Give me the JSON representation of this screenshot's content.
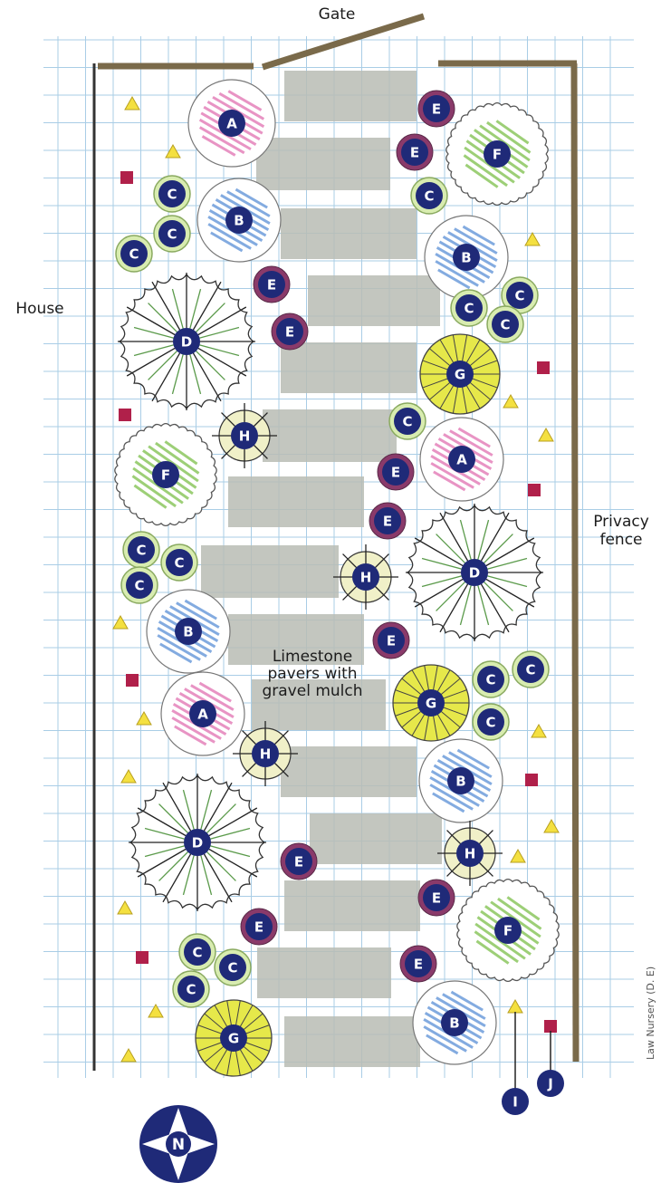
{
  "labels": {
    "gate": "Gate",
    "house": "House",
    "privacy_fence": [
      "Privacy",
      "fence"
    ],
    "pavers": [
      "Limestone",
      "pavers with",
      "gravel mulch"
    ],
    "compass": "N",
    "credit": "Law Nursery (D. E)"
  },
  "legend_markers": [
    "I",
    "J"
  ],
  "colors": {
    "grid": "#a9cde6",
    "fence": "#7a6a4a",
    "house_wall": "#333333",
    "paver": "#b8bcb4",
    "marker_fill": "#1f2a78",
    "marker_text": "#ffffff",
    "A": "#e070b0",
    "B": "#5a8fd6",
    "C": "#d8ecb0",
    "D": "#5a9a4a",
    "E": "#8a3a6a",
    "F": "#7cbf4a",
    "G": "#e6e84a",
    "H": "#f0f0c8",
    "triangle": "#f4e040",
    "square": "#b0204a"
  },
  "plants": [
    {
      "code": "A",
      "kind": "pink-scribble"
    },
    {
      "code": "E",
      "kind": "ring"
    },
    {
      "code": "F",
      "kind": "green-scalloped"
    },
    {
      "code": "E",
      "kind": "ring"
    },
    {
      "code": "C",
      "kind": "small-ring"
    },
    {
      "code": "B",
      "kind": "blue-scribble"
    },
    {
      "code": "C",
      "kind": "small-ring"
    },
    {
      "code": "C",
      "kind": "small-ring"
    },
    {
      "code": "C",
      "kind": "small-ring"
    },
    {
      "code": "B",
      "kind": "blue-scribble"
    },
    {
      "code": "E",
      "kind": "ring"
    },
    {
      "code": "C",
      "kind": "small-ring"
    },
    {
      "code": "C",
      "kind": "small-ring"
    },
    {
      "code": "C",
      "kind": "small-ring"
    },
    {
      "code": "D",
      "kind": "spiky"
    },
    {
      "code": "E",
      "kind": "ring"
    },
    {
      "code": "G",
      "kind": "yellow-rayed"
    },
    {
      "code": "C",
      "kind": "small-ring"
    },
    {
      "code": "H",
      "kind": "starburst"
    },
    {
      "code": "A",
      "kind": "pink-scribble"
    },
    {
      "code": "E",
      "kind": "ring"
    },
    {
      "code": "F",
      "kind": "green-scalloped"
    },
    {
      "code": "E",
      "kind": "ring"
    },
    {
      "code": "C",
      "kind": "small-ring"
    },
    {
      "code": "C",
      "kind": "small-ring"
    },
    {
      "code": "C",
      "kind": "small-ring"
    },
    {
      "code": "H",
      "kind": "starburst"
    },
    {
      "code": "D",
      "kind": "spiky"
    },
    {
      "code": "B",
      "kind": "blue-scribble"
    },
    {
      "code": "E",
      "kind": "ring"
    },
    {
      "code": "C",
      "kind": "small-ring"
    },
    {
      "code": "C",
      "kind": "small-ring"
    },
    {
      "code": "C",
      "kind": "small-ring"
    },
    {
      "code": "A",
      "kind": "pink-scribble"
    },
    {
      "code": "G",
      "kind": "yellow-rayed"
    },
    {
      "code": "H",
      "kind": "starburst"
    },
    {
      "code": "B",
      "kind": "blue-scribble"
    },
    {
      "code": "D",
      "kind": "spiky"
    },
    {
      "code": "H",
      "kind": "starburst"
    },
    {
      "code": "E",
      "kind": "ring"
    },
    {
      "code": "E",
      "kind": "ring"
    },
    {
      "code": "F",
      "kind": "green-scalloped"
    },
    {
      "code": "E",
      "kind": "ring"
    },
    {
      "code": "C",
      "kind": "small-ring"
    },
    {
      "code": "C",
      "kind": "small-ring"
    },
    {
      "code": "C",
      "kind": "small-ring"
    },
    {
      "code": "E",
      "kind": "ring"
    },
    {
      "code": "G",
      "kind": "yellow-rayed"
    },
    {
      "code": "B",
      "kind": "blue-scribble"
    }
  ]
}
